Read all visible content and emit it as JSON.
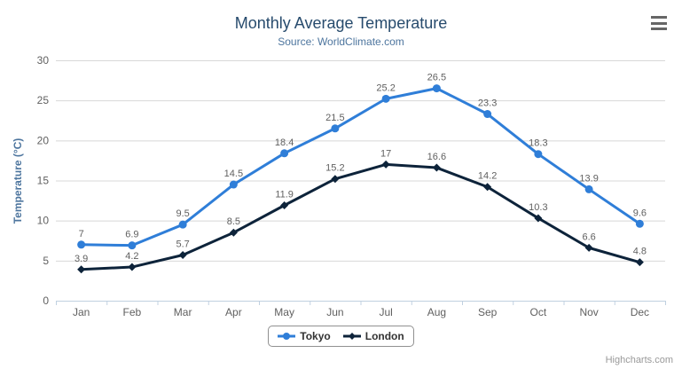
{
  "chart_data": {
    "type": "line",
    "title": "Monthly Average Temperature",
    "subtitle": "Source: WorldClimate.com",
    "categories": [
      "Jan",
      "Feb",
      "Mar",
      "Apr",
      "May",
      "Jun",
      "Jul",
      "Aug",
      "Sep",
      "Oct",
      "Nov",
      "Dec"
    ],
    "series": [
      {
        "name": "Tokyo",
        "color": "#2f7ed8",
        "marker": "circle",
        "values": [
          7,
          6.9,
          9.5,
          14.5,
          18.4,
          21.5,
          25.2,
          26.5,
          23.3,
          18.3,
          13.9,
          9.6
        ]
      },
      {
        "name": "London",
        "color": "#0d233a",
        "marker": "diamond",
        "values": [
          3.9,
          4.2,
          5.7,
          8.5,
          11.9,
          15.2,
          17,
          16.6,
          14.2,
          10.3,
          6.6,
          4.8
        ]
      }
    ],
    "xlabel": "",
    "ylabel": "Temperature (°C)",
    "ylim": [
      0,
      30
    ],
    "ytick_step": 5,
    "grid": true,
    "data_labels": true,
    "legend_position": "bottom-center"
  },
  "labels": {
    "credits": "Highcharts.com"
  },
  "icons": {
    "menu": "hamburger-menu-icon"
  },
  "colors": {
    "background": "#ffffff",
    "title": "#274b6d",
    "subtitle": "#4d759e",
    "axis_title": "#4d759e",
    "axis_label": "#606060",
    "data_label": "#606060",
    "grid": "#d8d8d8",
    "axis_line": "#c0d0e0",
    "legend_text": "#333333",
    "legend_border": "#909090",
    "credits": "#999999",
    "menu": "#666666"
  }
}
